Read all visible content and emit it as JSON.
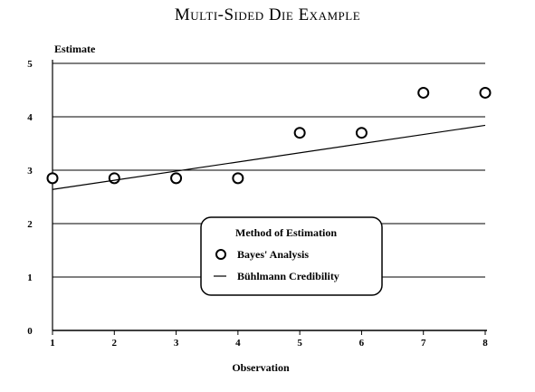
{
  "chart_data": {
    "type": "scatter",
    "title": "Multi-Sided Die Example",
    "xlabel": "Observation",
    "ylabel": "Estimate",
    "xlim": [
      1,
      8
    ],
    "ylim": [
      0,
      5
    ],
    "x_ticks": [
      "1",
      "2",
      "3",
      "4",
      "5",
      "6",
      "7",
      "8"
    ],
    "y_ticks": [
      "0",
      "1",
      "2",
      "3",
      "4",
      "5"
    ],
    "grid": true,
    "legend": {
      "title": "Method of Estimation",
      "placement": "center-bottom",
      "entries": [
        "Bayes' Analysis",
        "Bühlmann Credibility"
      ]
    },
    "series": [
      {
        "name": "Bayes' Analysis",
        "kind": "markers",
        "x": [
          1,
          2,
          3,
          4,
          5,
          6,
          7,
          8
        ],
        "y": [
          2.85,
          2.85,
          2.85,
          2.85,
          3.7,
          3.7,
          4.45,
          4.45
        ]
      },
      {
        "name": "Bühlmann Credibility",
        "kind": "line",
        "x": [
          1,
          8
        ],
        "y": [
          2.64,
          3.84
        ]
      }
    ]
  }
}
